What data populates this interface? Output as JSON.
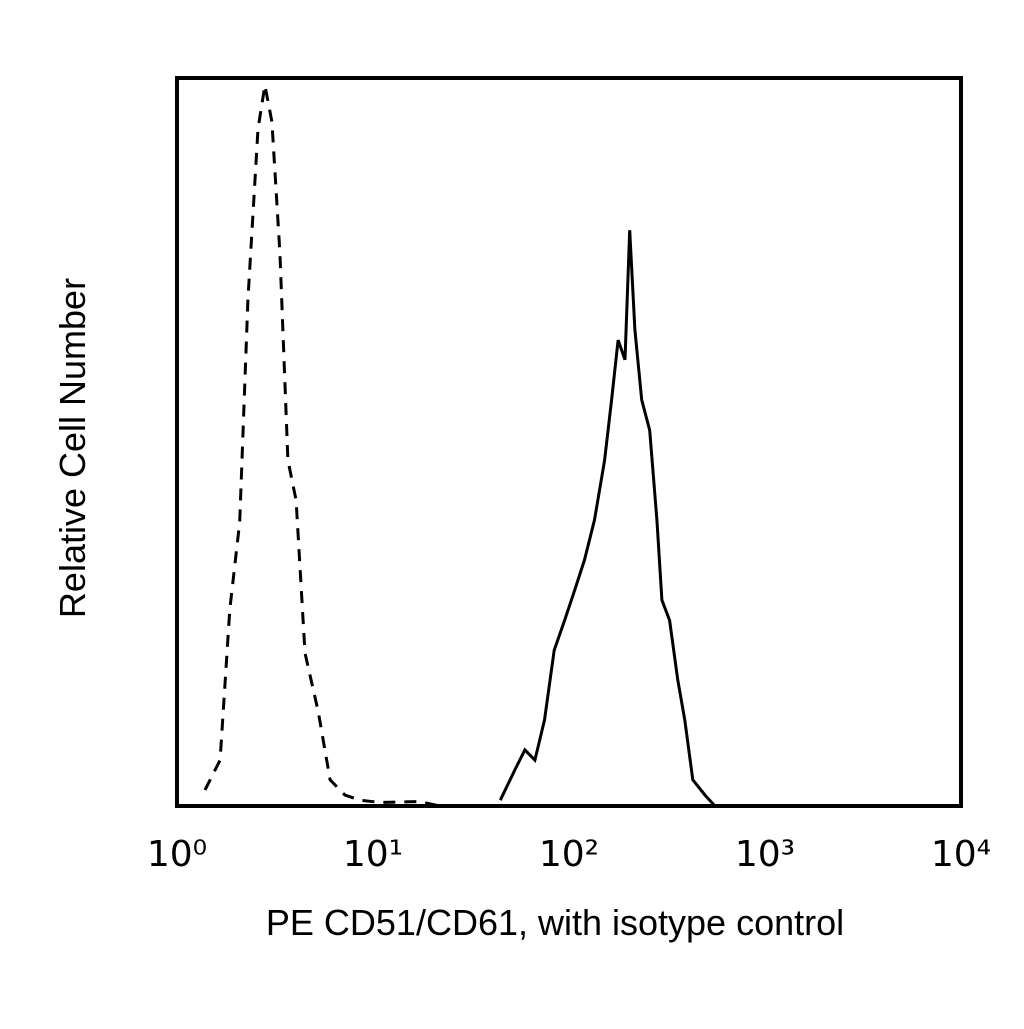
{
  "chart_data": {
    "type": "line",
    "x_label": "PE CD51/CD61, with isotype control",
    "y_label": "Relative Cell Number",
    "xscale": "log",
    "xlim": [
      1,
      10000
    ],
    "xticks": [
      {
        "value": 1,
        "label": "10⁰"
      },
      {
        "value": 10,
        "label": "10¹"
      },
      {
        "value": 100,
        "label": "10²"
      },
      {
        "value": 1000,
        "label": "10³"
      },
      {
        "value": 10000,
        "label": "10⁴"
      }
    ],
    "ylim": [
      0,
      100
    ],
    "series": [
      {
        "color": "#000000",
        "dashed": true,
        "x": [
          1.39,
          1.66,
          1.86,
          2.09,
          2.3,
          2.59,
          2.81,
          3.05,
          3.35,
          3.68,
          4.05,
          4.5,
          5.25,
          6.04,
          7.19,
          8.58,
          10.8,
          17.3,
          21.9
        ],
        "values": [
          2.2,
          6.3,
          27,
          39,
          69.5,
          93,
          99,
          94,
          76,
          47.5,
          42,
          21,
          13,
          3.6,
          1.5,
          0.8,
          0.5,
          0.6,
          0
        ]
      },
      {
        "color": "#000000",
        "dashed": false,
        "x": [
          44.6,
          53,
          59.6,
          67,
          75,
          84,
          95,
          107,
          120,
          135,
          152,
          165,
          178,
          193,
          204,
          217,
          235,
          258,
          281,
          298,
          326,
          359,
          390,
          428,
          494,
          555
        ],
        "values": [
          0.8,
          5,
          7.7,
          6.3,
          11.8,
          21.4,
          25.5,
          29.7,
          33.8,
          39.3,
          47.5,
          55.8,
          64,
          61.3,
          79.1,
          65.4,
          55.8,
          51.6,
          39.3,
          28.3,
          25.5,
          17.3,
          11.8,
          3.6,
          1.5,
          0
        ]
      }
    ]
  }
}
